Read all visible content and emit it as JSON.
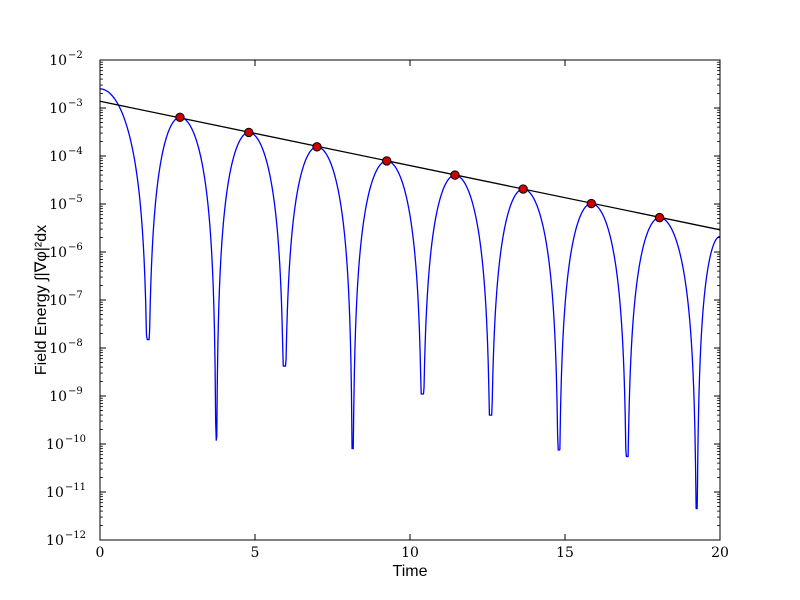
{
  "chart_data": {
    "type": "line",
    "title": "",
    "xlabel": "Time",
    "ylabel": "Field Energy ∫|∇φ|²dx",
    "xlim": [
      0,
      20
    ],
    "ylim": [
      1e-12,
      0.01
    ],
    "yscale": "log",
    "grid": false,
    "legend": "none",
    "x_ticks": [
      {
        "value": 0,
        "label": "0"
      },
      {
        "value": 5,
        "label": "5"
      },
      {
        "value": 10,
        "label": "10"
      },
      {
        "value": 15,
        "label": "15"
      },
      {
        "value": 20,
        "label": "20"
      }
    ],
    "y_ticks": [
      {
        "value": 0.01,
        "base": "10",
        "exp": "−2"
      },
      {
        "value": 0.001,
        "base": "10",
        "exp": "−3"
      },
      {
        "value": 0.0001,
        "base": "10",
        "exp": "−4"
      },
      {
        "value": 1e-05,
        "base": "10",
        "exp": "−5"
      },
      {
        "value": 1e-06,
        "base": "10",
        "exp": "−6"
      },
      {
        "value": 1e-07,
        "base": "10",
        "exp": "−7"
      },
      {
        "value": 1e-08,
        "base": "10",
        "exp": "−8"
      },
      {
        "value": 1e-09,
        "base": "10",
        "exp": "−9"
      },
      {
        "value": 1e-10,
        "base": "10",
        "exp": "−10"
      },
      {
        "value": 1e-11,
        "base": "10",
        "exp": "−11"
      },
      {
        "value": 1e-12,
        "base": "10",
        "exp": "−12"
      }
    ],
    "series": [
      {
        "kind": "line",
        "color": "#0000ff",
        "peaks": [
          {
            "x": 0.0,
            "y": 0.0025
          },
          {
            "x": 2.58,
            "y": 0.00064
          },
          {
            "x": 4.8,
            "y": 0.00031
          },
          {
            "x": 7.0,
            "y": 0.000155
          },
          {
            "x": 9.25,
            "y": 7.9e-05
          },
          {
            "x": 11.45,
            "y": 4e-05
          },
          {
            "x": 13.65,
            "y": 2.05e-05
          },
          {
            "x": 15.85,
            "y": 1.02e-05
          },
          {
            "x": 18.05,
            "y": 5.2e-06
          },
          {
            "x": 20.0,
            "y": 2.1e-06
          }
        ],
        "minima": [
          {
            "x": 1.55,
            "y": 1.5e-08
          },
          {
            "x": 3.75,
            "y": 1.2e-10
          },
          {
            "x": 5.95,
            "y": 4.2e-09
          },
          {
            "x": 8.15,
            "y": 8e-11
          },
          {
            "x": 10.4,
            "y": 1.1e-09
          },
          {
            "x": 12.6,
            "y": 4e-10
          },
          {
            "x": 14.8,
            "y": 7.5e-11
          },
          {
            "x": 17.0,
            "y": 5.5e-11
          },
          {
            "x": 19.25,
            "y": 4.5e-12
          }
        ]
      },
      {
        "kind": "line",
        "color": "#000000",
        "x": [
          0,
          20
        ],
        "y": [
          0.00138,
          2.9e-06
        ]
      },
      {
        "kind": "scatter",
        "color": "#cc0000",
        "points": [
          {
            "x": 2.58,
            "y": 0.00064
          },
          {
            "x": 4.8,
            "y": 0.00031
          },
          {
            "x": 7.0,
            "y": 0.000155
          },
          {
            "x": 9.25,
            "y": 7.9e-05
          },
          {
            "x": 11.45,
            "y": 4e-05
          },
          {
            "x": 13.65,
            "y": 2.05e-05
          },
          {
            "x": 15.85,
            "y": 1.02e-05
          },
          {
            "x": 18.05,
            "y": 5.2e-06
          }
        ]
      }
    ]
  }
}
